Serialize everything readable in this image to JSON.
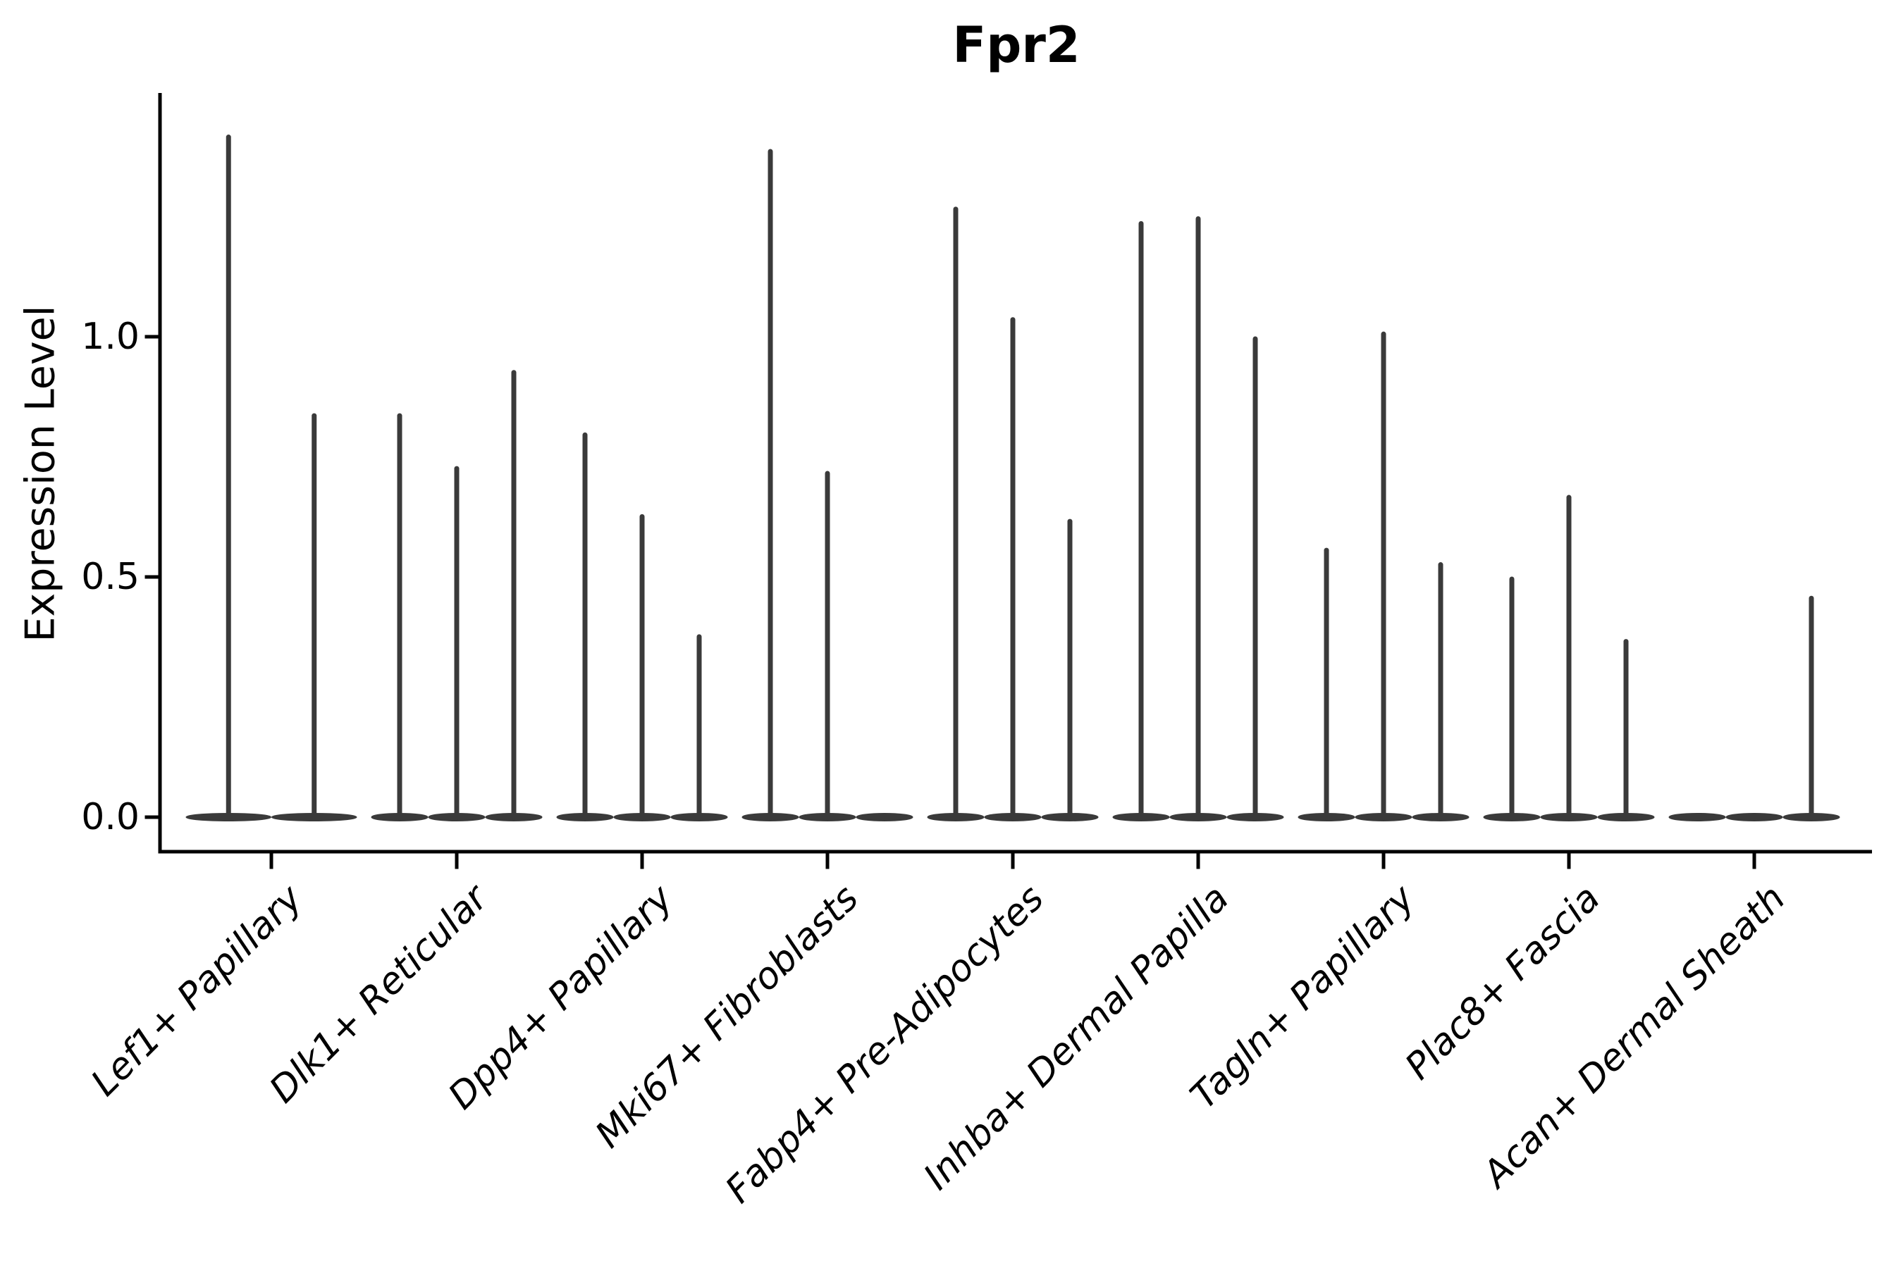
{
  "colors": {
    "violin": "#3a3a3a",
    "axis": "#000000",
    "text": "#000000",
    "background": "#ffffff"
  },
  "chart_data": {
    "type": "violin",
    "title": "Fpr2",
    "xlabel": "",
    "ylabel": "Expression Level",
    "ylim": [
      -0.07,
      1.51
    ],
    "grid": false,
    "legend_position": "none",
    "yticks": [
      "0.0",
      "0.5",
      "1.0"
    ],
    "ytick_values": [
      0.0,
      0.5,
      1.0
    ],
    "categories": [
      "Lef1+ Papillary",
      "Dlk1+ Reticular",
      "Dpp4+ Papillary",
      "Mki67+ Fibroblasts",
      "Fabp4+ Pre-Adipocytes",
      "Inhba+ Dermal Papilla",
      "Tagln+ Papillary",
      "Plac8+ Fascia",
      "Acan+ Dermal Sheath"
    ],
    "violin_description": "Each category holds 2-3 thin dodged violins; expression mass sits at 0 (flat pancake) with a hair-thin spike rising to the max expression value listed below. Zero entries are violins with no spike (all cells at 0).",
    "violin_max_values_per_category": [
      [
        1.42,
        0.84
      ],
      [
        0.84,
        0.73,
        0.93
      ],
      [
        0.8,
        0.63,
        0.38
      ],
      [
        1.39,
        0.72,
        0.0
      ],
      [
        1.27,
        1.04,
        0.62
      ],
      [
        1.24,
        1.25,
        1.0
      ],
      [
        0.56,
        1.01,
        0.53
      ],
      [
        0.5,
        0.67,
        0.37
      ],
      [
        0.0,
        0.0,
        0.46
      ]
    ]
  }
}
